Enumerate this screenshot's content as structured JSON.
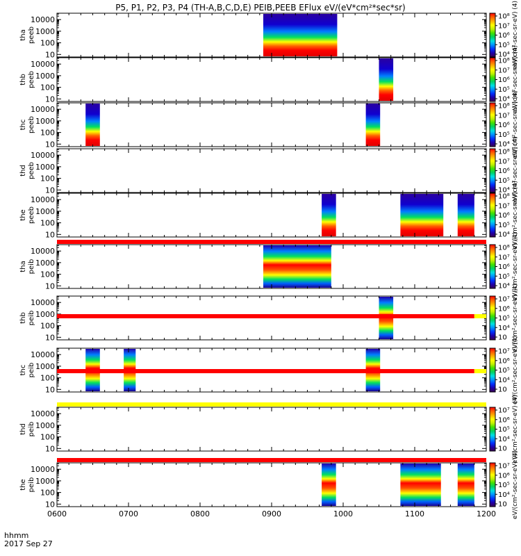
{
  "title": "P5, P1, P2, P3, P4 (TH-A,B,C,D,E) PEIB,PEEB EFlux eV/(eV*cm²*sec*sr)",
  "footer": {
    "line1": "hhmm",
    "line2": "2017 Sep 27"
  },
  "chart_data": {
    "type": "heatmap",
    "x_ticks": [
      "0600",
      "0700",
      "0800",
      "0900",
      "1000",
      "1100",
      "1200"
    ],
    "xlim": [
      "06:00",
      "12:00"
    ],
    "y_scale": "log",
    "y_ticks": [
      "10",
      "100",
      "1000",
      "10000"
    ],
    "colorbar_scale": "log",
    "colormap": "rainbow",
    "panels": [
      {
        "ylabel_top": "tha",
        "ylabel_bottom": "peeb",
        "cb_ticks": [
          "10⁴",
          "10⁵",
          "10⁶",
          "10⁷",
          "10⁸"
        ],
        "cb_label": "eV/(cm²-sec-sr-eV) (4)",
        "blocks": [
          [
            "08:53",
            "09:55"
          ]
        ]
      },
      {
        "ylabel_top": "thb",
        "ylabel_bottom": "peeb",
        "cb_ticks": [
          "10⁴",
          "10⁵",
          "10⁶",
          "10⁷",
          "10⁸"
        ],
        "cb_label": "eV/(cm²-sec-sr-eV) (4)",
        "blocks": [
          [
            "10:30",
            "10:42"
          ]
        ]
      },
      {
        "ylabel_top": "thc",
        "ylabel_bottom": "peeb",
        "cb_ticks": [
          "10⁴",
          "10⁵",
          "10⁶",
          "10⁷",
          "10⁸"
        ],
        "cb_label": "eV/(cm²-sec-sr-eV) (4)",
        "blocks": [
          [
            "06:24",
            "06:36"
          ],
          [
            "10:19",
            "10:31"
          ]
        ]
      },
      {
        "ylabel_top": "thd",
        "ylabel_bottom": "peeb",
        "cb_ticks": [
          "10⁴",
          "10⁵",
          "10⁶",
          "10⁷",
          "10⁸"
        ],
        "cb_label": "eV/(cm²-sec-sr-eV) (4)",
        "blocks": []
      },
      {
        "ylabel_top": "the",
        "ylabel_bottom": "peeb",
        "cb_ticks": [
          "10⁴",
          "10⁵",
          "10⁶",
          "10⁷",
          "10⁸"
        ],
        "cb_label": "eV/(cm²-sec-sr-eV) (4)",
        "blocks": [
          [
            "09:42",
            "09:54"
          ],
          [
            "10:48",
            "11:24"
          ],
          [
            "11:36",
            "11:50"
          ]
        ]
      },
      {
        "ylabel_top": "tha",
        "ylabel_bottom": "peib",
        "cb_ticks": [
          "10⁴",
          "10⁵",
          "10⁶",
          "10⁷",
          "10⁸"
        ],
        "cb_label": "eV/(cm²-sec-sr-eV) (4)",
        "blocks": [
          [
            "08:53",
            "09:50"
          ]
        ]
      },
      {
        "ylabel_top": "thb",
        "ylabel_bottom": "peib",
        "cb_ticks": [
          "10⁳",
          "10⁴",
          "10⁵",
          "10⁶",
          "10⁷"
        ],
        "cb_label": "eV/(cm²-sec-sr-eV) (4)",
        "blocks": [
          [
            "10:30",
            "10:42"
          ]
        ]
      },
      {
        "ylabel_top": "thc",
        "ylabel_bottom": "peib",
        "cb_ticks": [
          "10⁳",
          "10⁴",
          "10⁵",
          "10⁶",
          "10⁷"
        ],
        "cb_label": "eV/(cm²-sec-sr-eV) (4)",
        "blocks": [
          [
            "06:24",
            "06:36"
          ],
          [
            "06:56",
            "07:06"
          ],
          [
            "10:19",
            "10:31"
          ]
        ]
      },
      {
        "ylabel_top": "thd",
        "ylabel_bottom": "peib",
        "cb_ticks": [
          "10⁳",
          "10⁴",
          "10⁵",
          "10⁶",
          "10⁷"
        ],
        "cb_label": "eV/(cm²-sec-sr-eV) (4)",
        "blocks": []
      },
      {
        "ylabel_top": "the",
        "ylabel_bottom": "peib",
        "cb_ticks": [
          "10⁳",
          "10⁴",
          "10⁵",
          "10⁶",
          "10⁷"
        ],
        "cb_label": "eV/(cm²-sec-sr-eV) (4)",
        "blocks": [
          [
            "09:42",
            "09:54"
          ],
          [
            "10:48",
            "11:22"
          ],
          [
            "11:36",
            "11:50"
          ]
        ]
      }
    ],
    "status_bars": [
      {
        "after_panel": 5,
        "color": "#ff0000",
        "until": "12:00"
      },
      {
        "after_panel": 6,
        "color": "#ff0000",
        "until": "11:50",
        "rest_color": "#ffff00"
      },
      {
        "after_panel": 7,
        "color": "#ff0000",
        "until": "11:50",
        "rest_color": "#ffff00"
      },
      {
        "after_panel": 8,
        "color": "#ffff00",
        "until": "12:00"
      },
      {
        "after_panel": 9,
        "color": "#ff0000",
        "until": "12:00"
      }
    ]
  }
}
